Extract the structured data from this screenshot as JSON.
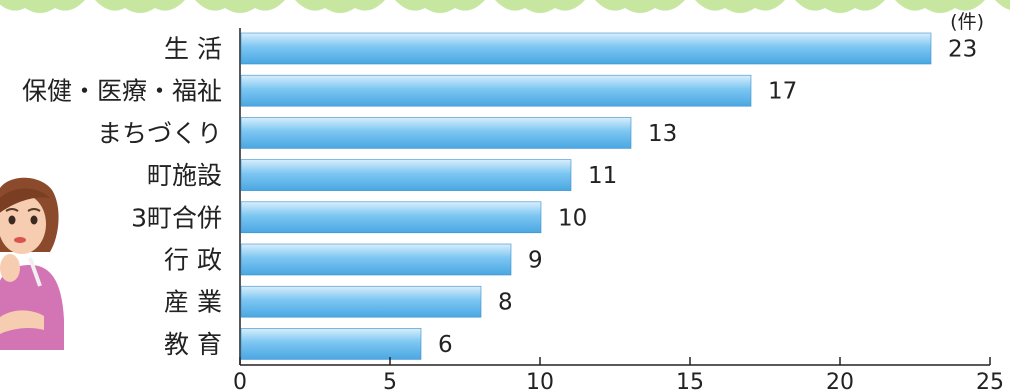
{
  "chart_data": {
    "type": "bar",
    "orientation": "horizontal",
    "categories": [
      "生 活",
      "保健・医療・福祉",
      "まちづくり",
      "町施設",
      "3町合併",
      "行 政",
      "産 業",
      "教 育"
    ],
    "values": [
      23,
      17,
      13,
      11,
      10,
      9,
      8,
      6
    ],
    "unit": "(件)",
    "xlim": [
      0,
      25
    ],
    "xticks": [
      0,
      5,
      10,
      15,
      20,
      25
    ],
    "grid": false,
    "legend": "none",
    "colors": {
      "bar_top": "#d8eefc",
      "bar_mid": "#7cc6f2",
      "bar_bottom": "#4aa7e2",
      "bar_edge": "#3a8fcb",
      "axis": "#222222",
      "text": "#222222",
      "leaf": "#c7e7a1"
    }
  },
  "decor": {
    "illustration": "thinking-woman-illustration",
    "border": "leaf-border"
  }
}
